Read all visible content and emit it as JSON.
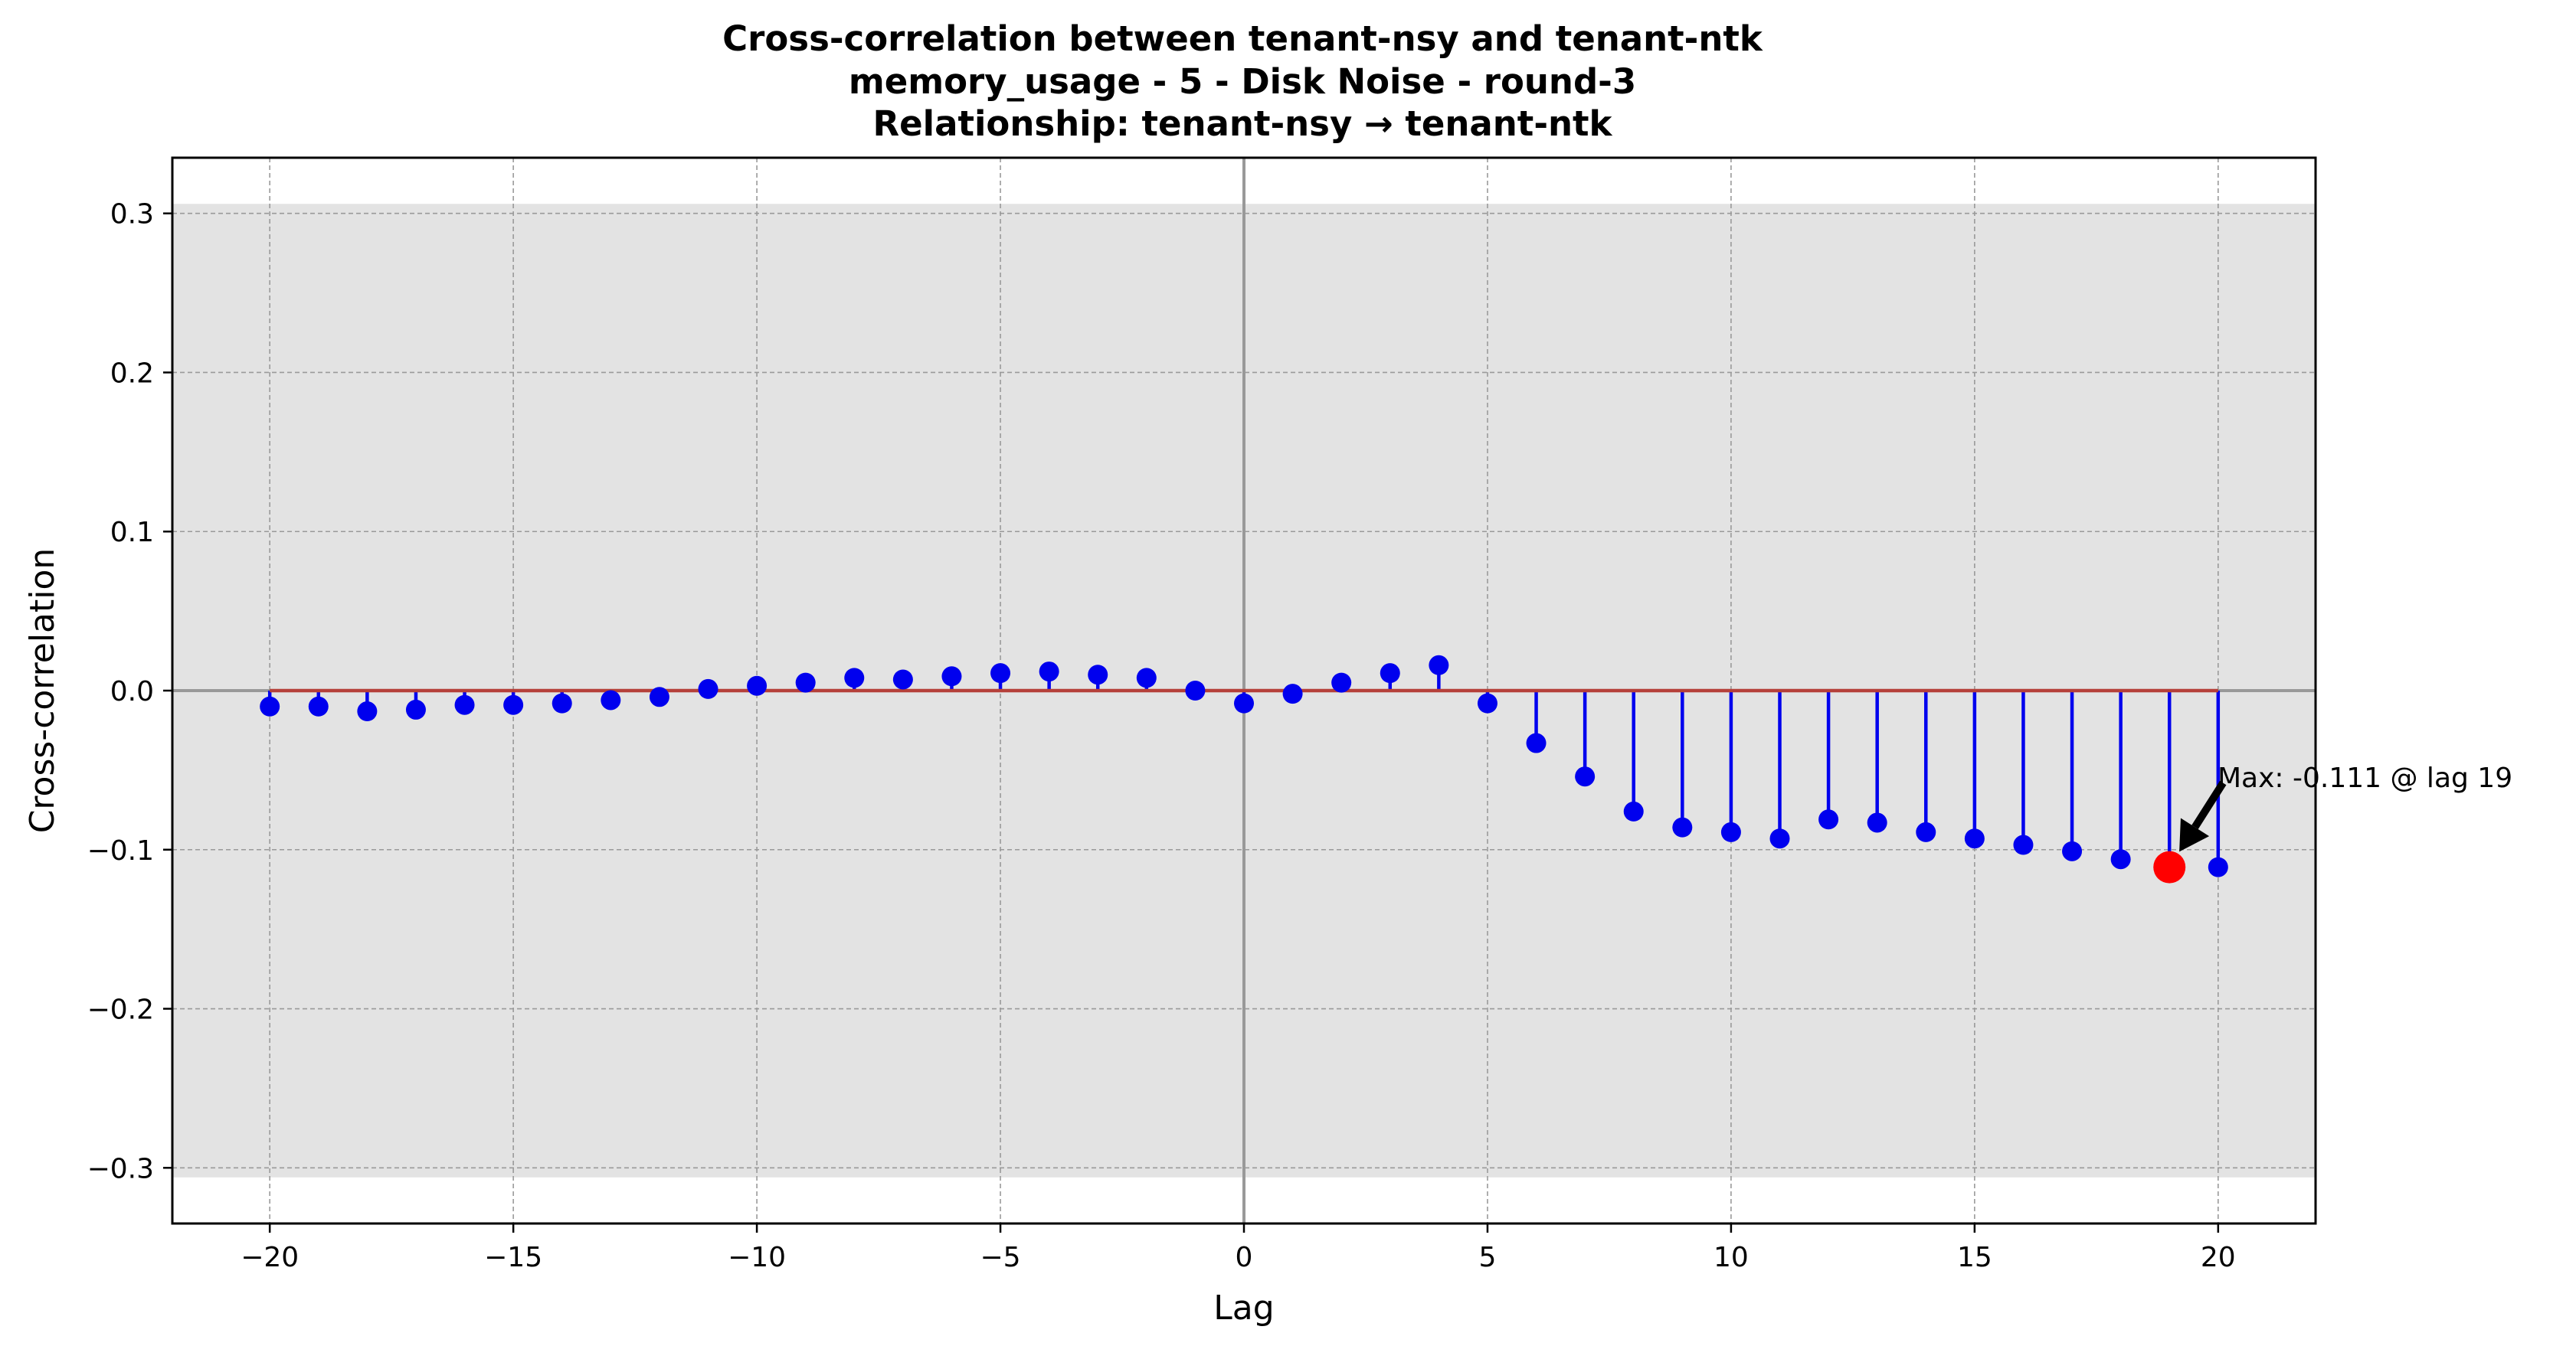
{
  "chart_data": {
    "type": "stem",
    "title_lines": [
      "Cross-correlation between tenant-nsy and tenant-ntk",
      "memory_usage - 5 - Disk Noise - round-3",
      "Relationship: tenant-nsy → tenant-ntk"
    ],
    "xlabel": "Lag",
    "ylabel": "Cross-correlation",
    "xlim": [
      -22,
      22
    ],
    "ylim": [
      -0.335,
      0.335
    ],
    "xticks": [
      -20,
      -15,
      -10,
      -5,
      0,
      5,
      10,
      15,
      20
    ],
    "xtick_labels": [
      "−20",
      "−15",
      "−10",
      "−5",
      "0",
      "5",
      "10",
      "15",
      "20"
    ],
    "yticks": [
      -0.3,
      -0.2,
      -0.1,
      0.0,
      0.1,
      0.2,
      0.3
    ],
    "ytick_labels": [
      "−0.3",
      "−0.2",
      "−0.1",
      "0.0",
      "0.1",
      "0.2",
      "0.3"
    ],
    "confidence_band": [
      -0.306,
      0.306
    ],
    "grid": true,
    "x": [
      -20,
      -19,
      -18,
      -17,
      -16,
      -15,
      -14,
      -13,
      -12,
      -11,
      -10,
      -9,
      -8,
      -7,
      -6,
      -5,
      -4,
      -3,
      -2,
      -1,
      0,
      1,
      2,
      3,
      4,
      5,
      6,
      7,
      8,
      9,
      10,
      11,
      12,
      13,
      14,
      15,
      16,
      17,
      18,
      19,
      20
    ],
    "values": [
      -0.01,
      -0.01,
      -0.013,
      -0.012,
      -0.009,
      -0.009,
      -0.008,
      -0.006,
      -0.004,
      0.001,
      0.003,
      0.005,
      0.008,
      0.007,
      0.009,
      0.011,
      0.012,
      0.01,
      0.008,
      0.0,
      -0.008,
      -0.002,
      0.005,
      0.011,
      0.016,
      -0.008,
      -0.033,
      -0.054,
      -0.076,
      -0.086,
      -0.089,
      -0.093,
      -0.081,
      -0.083,
      -0.089,
      -0.093,
      -0.097,
      -0.101,
      -0.106,
      -0.111,
      -0.111
    ],
    "max_point": {
      "x": 19,
      "y": -0.111
    },
    "annotation": "Max: -0.111 @ lag 19",
    "colors": {
      "stem": "#0000ee",
      "marker": "#0000ee",
      "baseline": "#b5403a",
      "max_marker": "#ff0000",
      "band": "#e3e3e3",
      "grid": "#9a9a9a",
      "zero_lines": "#999999"
    }
  }
}
